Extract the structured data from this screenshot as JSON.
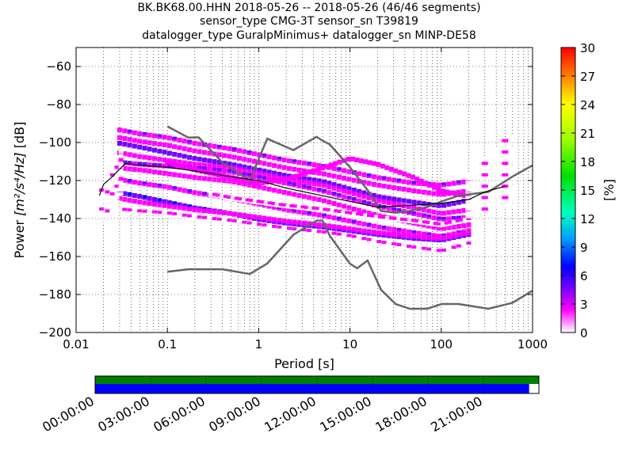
{
  "title_lines": [
    "BK.BK68.00.HHN   2018-05-26 -- 2018-05-26  (46/46 segments)",
    "sensor_type CMG-3T sensor_sn T39819",
    "datalogger_type GuralpMinimus+ datalogger_sn MINP-DE58"
  ],
  "chart_data": {
    "type": "heatmap",
    "xlabel": "Period [s]",
    "ylabel_prefix": "Power ",
    "ylabel_math": "[m²/s⁴/Hz]",
    "ylabel_suffix": " [dB]",
    "x_scale": "log",
    "xlim": [
      0.01,
      1000
    ],
    "ylim": [
      -200,
      -50
    ],
    "x_ticks": [
      0.01,
      0.1,
      1,
      10,
      100,
      1000
    ],
    "x_tick_labels": [
      "0.01",
      "0.1",
      "1",
      "10",
      "100",
      "1000"
    ],
    "y_ticks": [
      -200,
      -180,
      -160,
      -140,
      -120,
      -100,
      -80,
      -60
    ],
    "y_tick_labels": [
      "−200",
      "−180",
      "−160",
      "−140",
      "−120",
      "−100",
      "−80",
      "−60"
    ],
    "grid": true,
    "colorbar": {
      "label": "[%]",
      "range": [
        0,
        30
      ],
      "ticks": [
        0,
        3,
        6,
        9,
        12,
        15,
        18,
        21,
        24,
        27,
        30
      ],
      "colormap": [
        "#ffffff",
        "#ff00ff",
        "#7000ff",
        "#0000ff",
        "#00a0ff",
        "#00ffc0",
        "#00e000",
        "#a0ff00",
        "#ffff00",
        "#ff8000",
        "#ff0000"
      ]
    },
    "psd_bands": [
      {
        "x": [
          0.03,
          0.05,
          0.1,
          0.2,
          0.5,
          1,
          2,
          5,
          10,
          20,
          50,
          100,
          200
        ],
        "y": [
          -93,
          -95,
          -97,
          -100,
          -103,
          -106,
          -109,
          -112,
          -115,
          -118,
          -121,
          -122,
          -120
        ],
        "level": 4
      },
      {
        "x": [
          0.03,
          0.05,
          0.1,
          0.2,
          0.5,
          1,
          2,
          5,
          10,
          20,
          50,
          100,
          200
        ],
        "y": [
          -97,
          -99,
          -101,
          -104,
          -107,
          -110,
          -113,
          -116,
          -119,
          -122,
          -125,
          -127,
          -125
        ],
        "level": 3
      },
      {
        "x": [
          0.03,
          0.05,
          0.1,
          0.2,
          0.5,
          1,
          2,
          5,
          10,
          20,
          50,
          100,
          200
        ],
        "y": [
          -100,
          -102,
          -105,
          -108,
          -111,
          -114,
          -117,
          -120,
          -124,
          -128,
          -131,
          -133,
          -130
        ],
        "level": 6
      },
      {
        "x": [
          0.03,
          0.05,
          0.1,
          0.2,
          0.5,
          1,
          2,
          5,
          10,
          20,
          50,
          100,
          200
        ],
        "y": [
          -105,
          -107,
          -109,
          -111,
          -113,
          -116,
          -119,
          -122,
          -126,
          -130,
          -134,
          -137,
          -135
        ],
        "level": 3
      },
      {
        "x": [
          0.03,
          0.05,
          0.1,
          0.2,
          0.5,
          1,
          2,
          5,
          10,
          20,
          50,
          100,
          200
        ],
        "y": [
          -110,
          -111,
          -112,
          -113,
          -115,
          -118,
          -121,
          -125,
          -129,
          -133,
          -137,
          -140,
          -139
        ],
        "level": 5
      },
      {
        "x": [
          0.03,
          0.05,
          0.1,
          0.2,
          0.5,
          1,
          2,
          5,
          10,
          20,
          50,
          100,
          200
        ],
        "y": [
          -113,
          -114,
          -116,
          -118,
          -120,
          -123,
          -126,
          -130,
          -134,
          -138,
          -142,
          -145,
          -143
        ],
        "level": 3
      },
      {
        "x": [
          0.03,
          0.05,
          0.1,
          0.2,
          0.5,
          1,
          2,
          5,
          10,
          20,
          50,
          100,
          200
        ],
        "y": [
          -119,
          -121,
          -123,
          -126,
          -129,
          -132,
          -135,
          -138,
          -141,
          -144,
          -147,
          -149,
          -146
        ],
        "level": 4
      },
      {
        "x": [
          0.03,
          0.05,
          0.1,
          0.2,
          0.5,
          1,
          2,
          5,
          10,
          20,
          50,
          100,
          200
        ],
        "y": [
          -126,
          -128,
          -131,
          -134,
          -137,
          -140,
          -142,
          -144,
          -146,
          -148,
          -150,
          -151,
          -148
        ],
        "level": 7
      },
      {
        "x": [
          0.03,
          0.05,
          0.1,
          0.2,
          0.5,
          1,
          2,
          5,
          10,
          20,
          50,
          100,
          200
        ],
        "y": [
          -129,
          -131,
          -133,
          -135,
          -137,
          -139,
          -141,
          -143,
          -145,
          -147,
          -149,
          -150,
          -147
        ],
        "level": 3
      },
      {
        "x": [
          0.03,
          0.05,
          0.1,
          0.2,
          0.5,
          1,
          2,
          5,
          10,
          20,
          50,
          100,
          200
        ],
        "y": [
          -135,
          -136,
          -137,
          -139,
          -141,
          -143,
          -145,
          -147,
          -149,
          -152,
          -155,
          -157,
          -153
        ],
        "level": 2
      },
      {
        "x": [
          0.1,
          0.2,
          0.5,
          1,
          2,
          5,
          10,
          20,
          50,
          100,
          200
        ],
        "y": [
          -110,
          -114,
          -118,
          -121,
          -119,
          -113,
          -108,
          -111,
          -118,
          -125,
          -128
        ],
        "level": 3
      },
      {
        "x": [
          0.3,
          0.5,
          1,
          2,
          5,
          10,
          20,
          50,
          100,
          200
        ],
        "y": [
          -127,
          -129,
          -131,
          -133,
          -135,
          -137,
          -139,
          -141,
          -143,
          -140
        ],
        "level": 2
      }
    ],
    "left_edge_cluster": {
      "x": [
        0.019,
        0.022,
        0.025,
        0.028,
        0.031
      ],
      "y_top": [
        -123,
        -118,
        -113,
        -108,
        -104
      ],
      "y_bottom": [
        -141,
        -138,
        -135,
        -131,
        -127
      ]
    },
    "long_period_columns": {
      "x": [
        200,
        300,
        400,
        500,
        600
      ],
      "y_top": [
        -116,
        -109,
        -103,
        -99,
        -97
      ],
      "y_bottom": [
        -139,
        -135,
        -133,
        -133,
        -133
      ]
    },
    "mean_line": {
      "x": [
        0.018,
        0.02,
        0.025,
        0.03,
        0.035,
        0.05,
        0.1,
        0.2,
        0.5,
        1,
        2,
        5,
        10,
        20,
        50,
        100,
        200,
        300,
        500
      ],
      "y": [
        -128,
        -122,
        -118,
        -114,
        -111,
        -112,
        -113,
        -115,
        -118,
        -120,
        -124,
        -128,
        -131,
        -134,
        -133,
        -132,
        -130,
        -126,
        -123
      ]
    },
    "nhnm": {
      "x": [
        0.1,
        0.17,
        0.22,
        0.4,
        0.8,
        1.24,
        2.4,
        4.3,
        5,
        6,
        10,
        12,
        15.6,
        21.9,
        31.6,
        45,
        70,
        101,
        154,
        328,
        600,
        1000
      ],
      "y": [
        -91.5,
        -97.4,
        -97.3,
        -110.5,
        -120,
        -98,
        -104,
        -97,
        -99,
        -101,
        -113,
        -118,
        -125,
        -136,
        -137,
        -136,
        -134,
        -131,
        -128,
        -126,
        -118,
        -112
      ]
    },
    "nlnm": {
      "x": [
        0.1,
        0.17,
        0.4,
        0.8,
        1.24,
        2.4,
        4.3,
        5,
        6,
        10,
        12,
        15.6,
        21.9,
        31.6,
        45,
        70,
        101,
        154,
        328,
        600,
        1000
      ],
      "y": [
        -168,
        -166.7,
        -166.7,
        -169.2,
        -163.7,
        -148.6,
        -141.1,
        -141.1,
        -149,
        -163.8,
        -166.2,
        -162.1,
        -177.5,
        -185,
        -187.5,
        -187.5,
        -185,
        -185,
        -187.5,
        -184.4,
        -178
      ]
    }
  },
  "timeline": {
    "tick_labels": [
      "00:00:00",
      "03:00:00",
      "06:00:00",
      "09:00:00",
      "12:00:00",
      "15:00:00",
      "18:00:00",
      "21:00:00"
    ],
    "coverage_fraction": 0.978,
    "data_color": "#008000",
    "psd_color": "#0000ff"
  },
  "colors": {
    "mean_line": "#000000",
    "noise_model": "#666666",
    "grid": "#000000"
  }
}
